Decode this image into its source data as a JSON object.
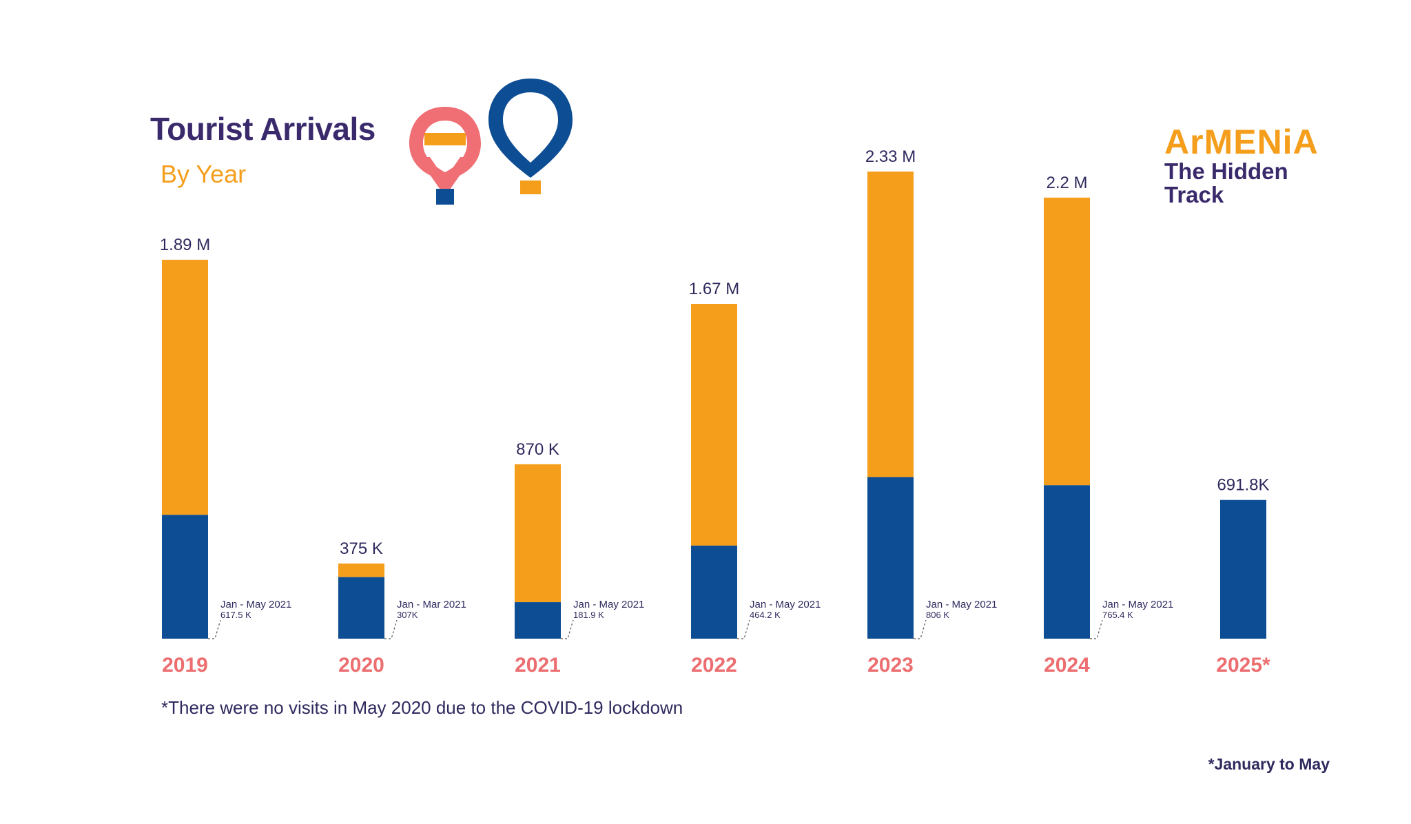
{
  "header": {
    "title": "Tourist Arrivals",
    "subtitle": "By Year"
  },
  "brand": {
    "logo_text": "ArMENiA",
    "tagline_line1": "The Hidden",
    "tagline_line2": "Track"
  },
  "footnotes": {
    "covid_note": "*There were no visits in May 2020 due to the COVID-19 lockdown",
    "partial_note": "*January to May"
  },
  "colors": {
    "orange": "#f59e1c",
    "blue": "#0d4d93",
    "year_label": "#ec6e70",
    "text": "#2e2a5e",
    "balloon_pink": "#ef6f74"
  },
  "icons": [
    "hot-air-balloon-pink-icon",
    "hot-air-balloon-blue-icon"
  ],
  "chart_data": {
    "type": "bar",
    "stacked": true,
    "categories": [
      "2019",
      "2020",
      "2021",
      "2022",
      "2023",
      "2024",
      "2025*"
    ],
    "totals": [
      1890000,
      375000,
      870000,
      1670000,
      2330000,
      2200000,
      691800
    ],
    "total_labels": [
      "1.89 M",
      "375 K",
      "870 K",
      "1.67 M",
      "2.33 M",
      "2.2 M",
      "691.8K"
    ],
    "series": [
      {
        "values": [
          617500,
          307000,
          181900,
          464200,
          806000,
          765400,
          691800
        ],
        "color": "#0d4d93"
      },
      {
        "values": [
          1272500,
          68000,
          688100,
          1205800,
          1524000,
          1434600,
          0
        ],
        "color": "#f59e1c"
      }
    ],
    "annotations": [
      {
        "period": "Jan - May 2021",
        "value": "617.5 K"
      },
      {
        "period": "Jan - Mar 2021",
        "value": "307K"
      },
      {
        "period": "Jan - May 2021",
        "value": "181.9 K"
      },
      {
        "period": "Jan - May 2021",
        "value": "464.2 K"
      },
      {
        "period": "Jan - May 2021",
        "value": "806 K"
      },
      {
        "period": "Jan - May 2021",
        "value": "765.4 K"
      },
      null
    ],
    "ylim": [
      0,
      2330000
    ],
    "grid": false,
    "legend": "none"
  }
}
